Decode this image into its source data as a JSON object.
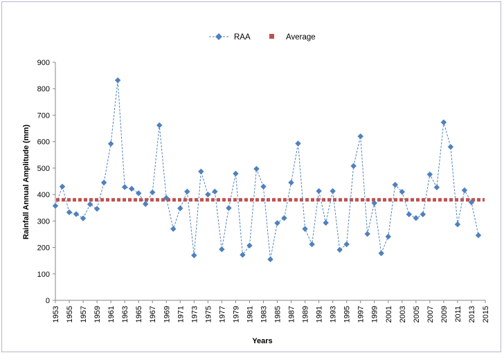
{
  "chart_data": {
    "type": "line",
    "title": "",
    "xlabel": "Years",
    "ylabel": "Rainfall Annual Amplitude (mm)",
    "xlim": [
      1953,
      2015
    ],
    "ylim": [
      0,
      900
    ],
    "x_ticks": [
      1953,
      1955,
      1957,
      1959,
      1961,
      1963,
      1965,
      1967,
      1969,
      1971,
      1973,
      1975,
      1977,
      1979,
      1981,
      1983,
      1985,
      1987,
      1989,
      1991,
      1993,
      1995,
      1997,
      1999,
      2001,
      2003,
      2005,
      2007,
      2009,
      2011,
      2013,
      2015
    ],
    "y_ticks": [
      0,
      100,
      200,
      300,
      400,
      500,
      600,
      700,
      800,
      900
    ],
    "grid": false,
    "legend_position": "top-center",
    "colors": {
      "raa": "#4f81bd",
      "average": "#c0504d",
      "frame": "#b9b3d6",
      "axis": "#868686"
    },
    "series": [
      {
        "name": "RAA",
        "style": "dashed-line-diamond-markers",
        "x": [
          1953,
          1954,
          1955,
          1956,
          1957,
          1958,
          1959,
          1960,
          1961,
          1962,
          1963,
          1964,
          1965,
          1966,
          1967,
          1968,
          1969,
          1970,
          1971,
          1972,
          1973,
          1974,
          1975,
          1976,
          1977,
          1978,
          1979,
          1980,
          1981,
          1982,
          1983,
          1984,
          1985,
          1986,
          1987,
          1988,
          1989,
          1990,
          1991,
          1992,
          1993,
          1994,
          1995,
          1996,
          1997,
          1998,
          1999,
          2000,
          2001,
          2002,
          2003,
          2004,
          2005,
          2006,
          2007,
          2008,
          2009,
          2010,
          2011,
          2012,
          2013,
          2014
        ],
        "values": [
          357,
          430,
          333,
          326,
          310,
          363,
          346,
          445,
          592,
          832,
          428,
          422,
          405,
          364,
          408,
          662,
          387,
          270,
          348,
          411,
          170,
          487,
          400,
          411,
          193,
          349,
          479,
          172,
          207,
          497,
          430,
          155,
          292,
          311,
          445,
          593,
          270,
          212,
          413,
          293,
          413,
          191,
          212,
          508,
          620,
          251,
          368,
          178,
          241,
          437,
          410,
          325,
          311,
          325,
          476,
          427,
          673,
          580,
          287,
          416,
          371,
          246
        ]
      },
      {
        "name": "Average",
        "style": "dotted-thick-line",
        "value": 380
      }
    ]
  }
}
